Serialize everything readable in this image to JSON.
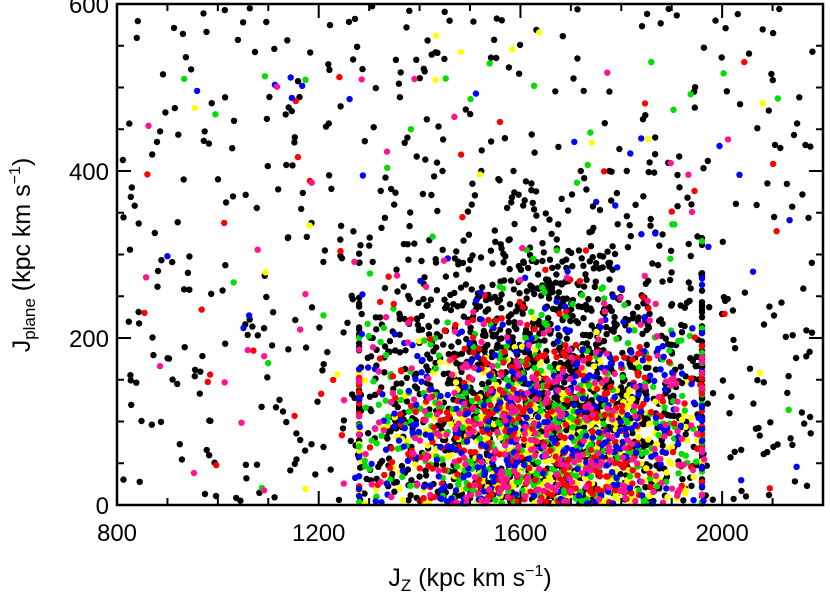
{
  "chart_data": {
    "type": "scatter",
    "title": "",
    "xlabel": {
      "main": "J",
      "sub": "Z",
      "rest": " (kpc km s",
      "exp": "−1",
      "close": ")"
    },
    "ylabel": {
      "main": "J",
      "sub": "plane",
      "rest": " (kpc km s",
      "exp": "−1",
      "close": ")"
    },
    "xlim": [
      800,
      2200
    ],
    "ylim": [
      0,
      600
    ],
    "x_ticks": [
      "800",
      "1200",
      "1600",
      "2000"
    ],
    "y_ticks": [
      "0",
      "200",
      "400",
      "600"
    ],
    "grid": false,
    "legend": "none",
    "colors": {
      "black": "#000000",
      "yellow": "#ffff00",
      "green": "#00dd00",
      "red": "#ff0000",
      "blue": "#0000ff",
      "magenta": "#ff1493"
    },
    "series": [
      {
        "color": "black",
        "generator": {
          "sparse_count": 560,
          "sparse_x": [
            810,
            2180
          ],
          "sparse_y": [
            5,
            600
          ],
          "dense_count": 1350,
          "dense_center": [
            1650,
            140
          ],
          "dense_spread": [
            190,
            95
          ],
          "dense_xlim": [
            1280,
            1960
          ],
          "dense_ylim": [
            0,
            400
          ]
        }
      },
      {
        "color": "yellow",
        "generator": {
          "sparse_count": 30,
          "sparse_x": [
            850,
            2150
          ],
          "sparse_y": [
            10,
            580
          ],
          "dense_count": 470,
          "dense_center": [
            1650,
            70
          ],
          "dense_spread": [
            170,
            55
          ],
          "dense_xlim": [
            1280,
            1960
          ],
          "dense_ylim": [
            0,
            320
          ]
        }
      },
      {
        "color": "green",
        "generator": {
          "sparse_count": 45,
          "sparse_x": [
            850,
            2150
          ],
          "sparse_y": [
            5,
            560
          ],
          "dense_count": 400,
          "dense_center": [
            1640,
            95
          ],
          "dense_spread": [
            180,
            70
          ],
          "dense_xlim": [
            1280,
            1960
          ],
          "dense_ylim": [
            0,
            360
          ]
        }
      },
      {
        "color": "red",
        "generator": {
          "sparse_count": 40,
          "sparse_x": [
            850,
            2150
          ],
          "sparse_y": [
            5,
            540
          ],
          "dense_count": 380,
          "dense_center": [
            1650,
            90
          ],
          "dense_spread": [
            180,
            70
          ],
          "dense_xlim": [
            1280,
            1960
          ],
          "dense_ylim": [
            0,
            360
          ]
        }
      },
      {
        "color": "blue",
        "generator": {
          "sparse_count": 35,
          "sparse_x": [
            850,
            2150
          ],
          "sparse_y": [
            5,
            520
          ],
          "dense_count": 330,
          "dense_center": [
            1640,
            100
          ],
          "dense_spread": [
            180,
            75
          ],
          "dense_xlim": [
            1280,
            1960
          ],
          "dense_ylim": [
            0,
            360
          ]
        }
      },
      {
        "color": "magenta",
        "generator": {
          "sparse_count": 40,
          "sparse_x": [
            850,
            2150
          ],
          "sparse_y": [
            5,
            520
          ],
          "dense_count": 280,
          "dense_center": [
            1650,
            90
          ],
          "dense_spread": [
            180,
            70
          ],
          "dense_xlim": [
            1280,
            1960
          ],
          "dense_ylim": [
            0,
            360
          ]
        }
      }
    ]
  }
}
